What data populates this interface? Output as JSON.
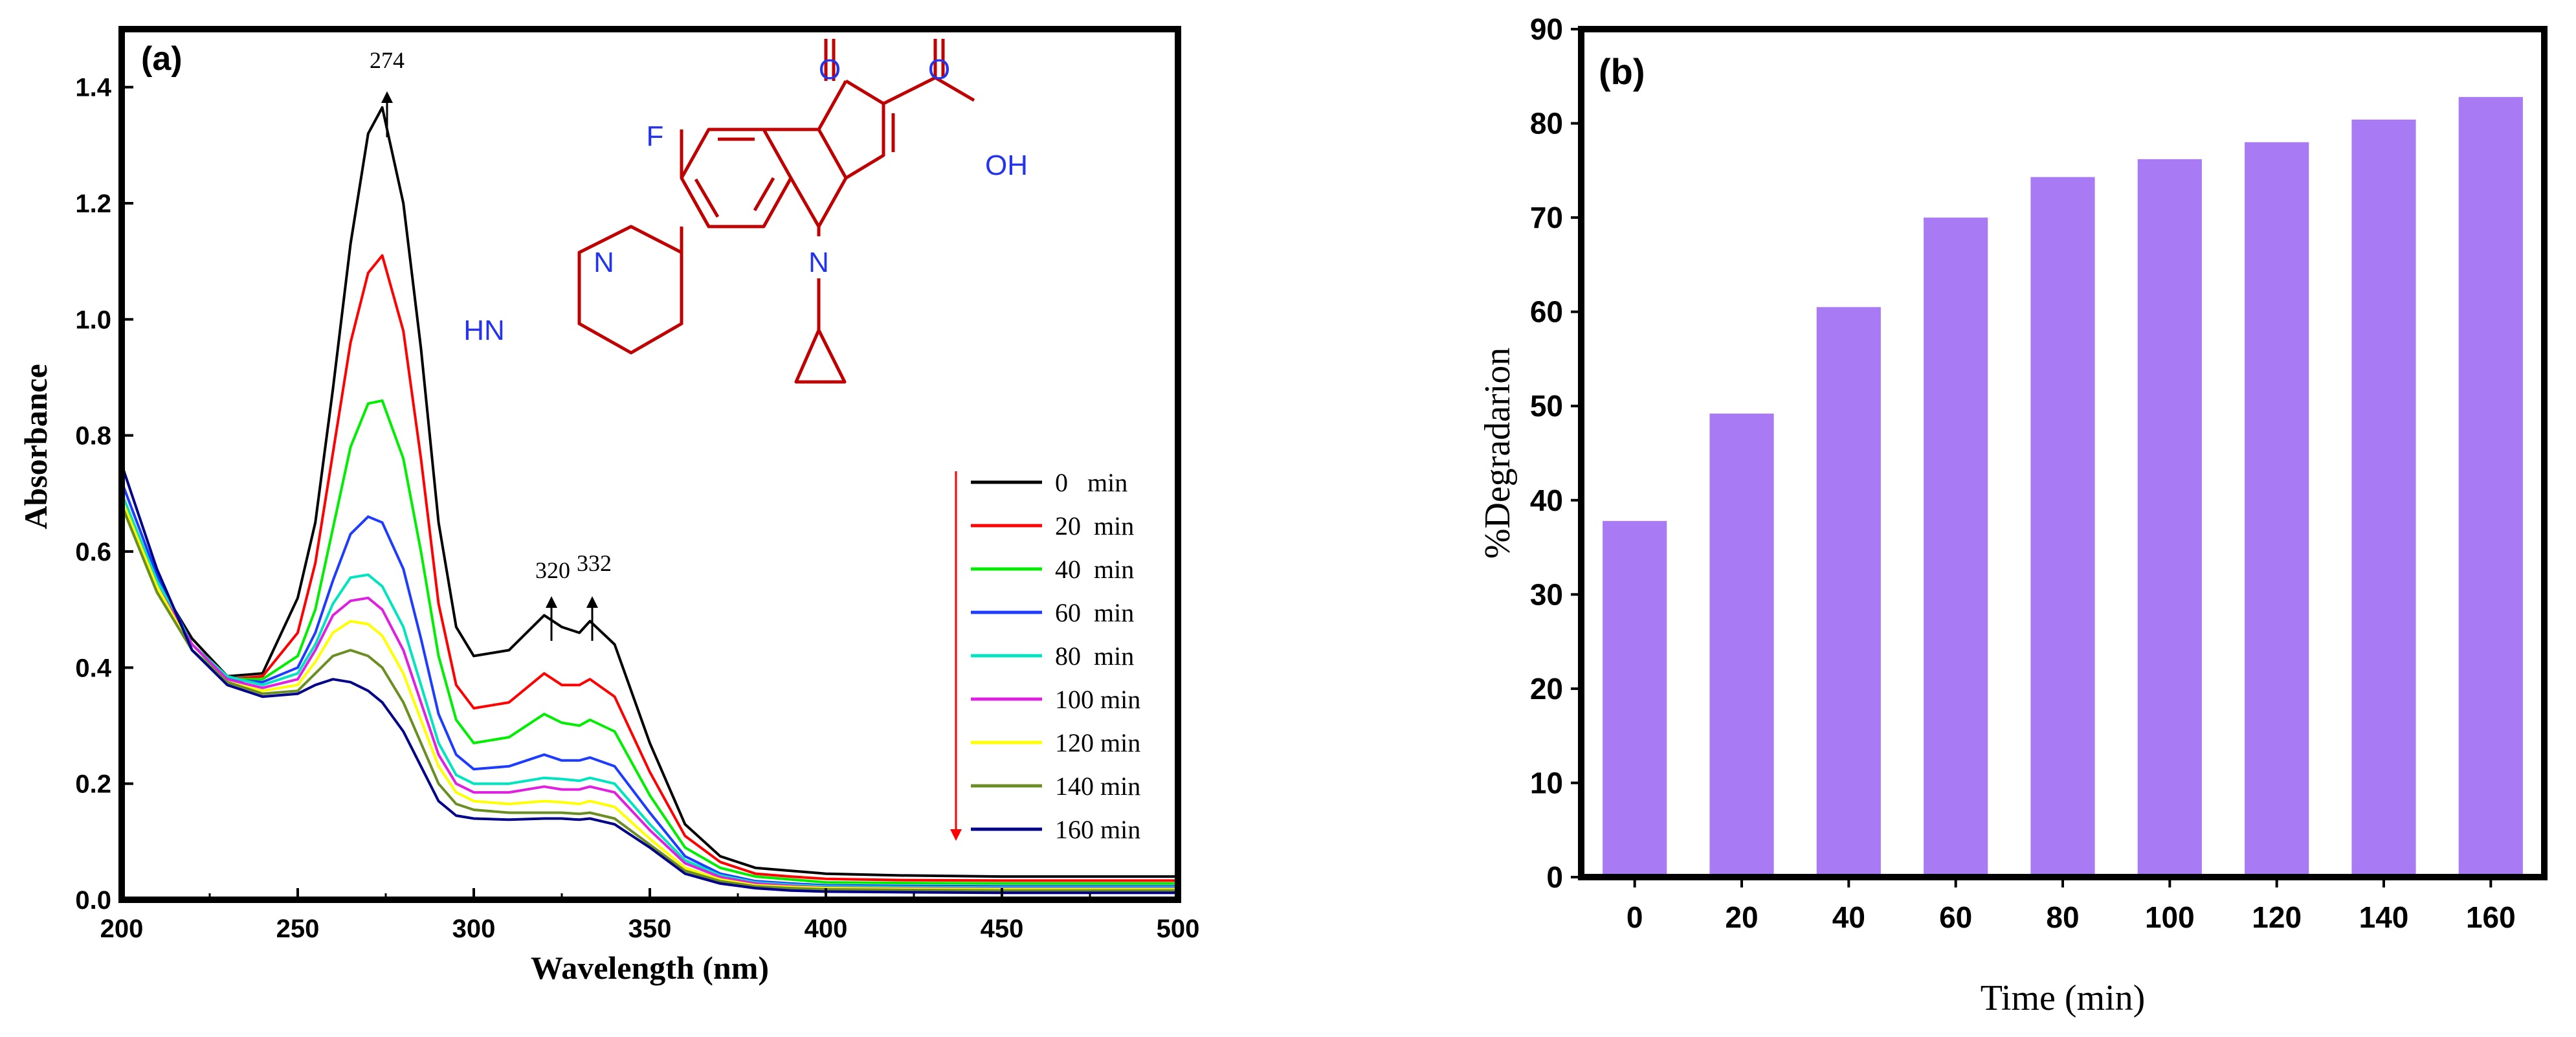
{
  "chart_data": [
    {
      "panel": "(a)",
      "type": "line",
      "xlabel": "Wavelength (nm)",
      "ylabel": "Absorbance",
      "xlim": [
        200,
        500
      ],
      "ylim": [
        0,
        1.5
      ],
      "xticks": [
        200,
        250,
        300,
        350,
        400,
        450,
        500
      ],
      "yticks": [
        0.0,
        0.2,
        0.4,
        0.6,
        0.8,
        1.0,
        1.2,
        1.4
      ],
      "ytick_labels": [
        "0.0",
        "0.2",
        "0.4",
        "0.6",
        "0.8",
        "1.0",
        "1.2",
        "1.4"
      ],
      "grid": false,
      "legend_position": "right",
      "peaks": [
        {
          "label": "274",
          "x": 274,
          "y": 1.365
        },
        {
          "label": "320",
          "x": 322,
          "y": 0.49
        },
        {
          "label": "332",
          "x": 333,
          "y": 0.48
        }
      ],
      "x": [
        200,
        210,
        220,
        230,
        240,
        250,
        255,
        260,
        265,
        270,
        274,
        280,
        285,
        290,
        295,
        300,
        310,
        320,
        325,
        330,
        333,
        340,
        350,
        360,
        370,
        380,
        390,
        400,
        420,
        450,
        480,
        500
      ],
      "series": [
        {
          "name": "0   min",
          "color": "#000000",
          "values": [
            0.7,
            0.55,
            0.45,
            0.385,
            0.39,
            0.52,
            0.65,
            0.88,
            1.13,
            1.32,
            1.365,
            1.2,
            0.95,
            0.65,
            0.47,
            0.42,
            0.43,
            0.49,
            0.47,
            0.46,
            0.48,
            0.44,
            0.27,
            0.13,
            0.075,
            0.055,
            0.05,
            0.045,
            0.042,
            0.04,
            0.04,
            0.04
          ]
        },
        {
          "name": "20  min",
          "color": "#ff0000",
          "values": [
            0.69,
            0.54,
            0.44,
            0.38,
            0.385,
            0.46,
            0.58,
            0.77,
            0.96,
            1.08,
            1.11,
            0.98,
            0.76,
            0.51,
            0.37,
            0.33,
            0.34,
            0.39,
            0.37,
            0.37,
            0.38,
            0.35,
            0.22,
            0.11,
            0.065,
            0.045,
            0.04,
            0.036,
            0.034,
            0.033,
            0.033,
            0.033
          ]
        },
        {
          "name": "40  min",
          "color": "#00ee00",
          "values": [
            0.68,
            0.53,
            0.43,
            0.38,
            0.38,
            0.42,
            0.5,
            0.64,
            0.78,
            0.855,
            0.86,
            0.76,
            0.6,
            0.42,
            0.31,
            0.27,
            0.28,
            0.32,
            0.305,
            0.3,
            0.31,
            0.29,
            0.18,
            0.09,
            0.055,
            0.04,
            0.035,
            0.03,
            0.029,
            0.028,
            0.028,
            0.028
          ]
        },
        {
          "name": "60  min",
          "color": "#1e3cff",
          "values": [
            0.72,
            0.56,
            0.44,
            0.38,
            0.375,
            0.4,
            0.46,
            0.55,
            0.63,
            0.66,
            0.65,
            0.57,
            0.45,
            0.32,
            0.25,
            0.225,
            0.23,
            0.25,
            0.24,
            0.24,
            0.245,
            0.23,
            0.15,
            0.075,
            0.045,
            0.032,
            0.028,
            0.025,
            0.024,
            0.023,
            0.023,
            0.023
          ]
        },
        {
          "name": "80  min",
          "color": "#00e5c0",
          "values": [
            0.7,
            0.55,
            0.44,
            0.385,
            0.37,
            0.39,
            0.44,
            0.51,
            0.555,
            0.56,
            0.54,
            0.47,
            0.37,
            0.27,
            0.215,
            0.2,
            0.2,
            0.21,
            0.208,
            0.205,
            0.21,
            0.2,
            0.13,
            0.068,
            0.042,
            0.03,
            0.026,
            0.023,
            0.022,
            0.021,
            0.021,
            0.021
          ]
        },
        {
          "name": "100 min",
          "color": "#e020e0",
          "values": [
            0.69,
            0.54,
            0.44,
            0.38,
            0.365,
            0.38,
            0.43,
            0.49,
            0.515,
            0.52,
            0.5,
            0.43,
            0.34,
            0.25,
            0.2,
            0.185,
            0.185,
            0.195,
            0.19,
            0.19,
            0.195,
            0.185,
            0.12,
            0.063,
            0.039,
            0.028,
            0.024,
            0.021,
            0.02,
            0.019,
            0.019,
            0.019
          ]
        },
        {
          "name": "120 min",
          "color": "#ffff00",
          "values": [
            0.69,
            0.54,
            0.43,
            0.375,
            0.36,
            0.37,
            0.41,
            0.46,
            0.48,
            0.475,
            0.455,
            0.39,
            0.31,
            0.23,
            0.185,
            0.17,
            0.165,
            0.17,
            0.168,
            0.165,
            0.17,
            0.16,
            0.105,
            0.055,
            0.035,
            0.025,
            0.022,
            0.02,
            0.019,
            0.018,
            0.018,
            0.018
          ]
        },
        {
          "name": "140 min",
          "color": "#6b8e23",
          "values": [
            0.68,
            0.53,
            0.43,
            0.375,
            0.355,
            0.36,
            0.39,
            0.42,
            0.43,
            0.42,
            0.4,
            0.34,
            0.27,
            0.2,
            0.165,
            0.155,
            0.15,
            0.15,
            0.15,
            0.148,
            0.15,
            0.14,
            0.095,
            0.05,
            0.032,
            0.023,
            0.02,
            0.018,
            0.017,
            0.016,
            0.016,
            0.016
          ]
        },
        {
          "name": "160 min",
          "color": "#00008b",
          "values": [
            0.75,
            0.57,
            0.43,
            0.37,
            0.35,
            0.355,
            0.37,
            0.38,
            0.375,
            0.36,
            0.34,
            0.29,
            0.23,
            0.17,
            0.145,
            0.14,
            0.138,
            0.14,
            0.14,
            0.138,
            0.14,
            0.13,
            0.09,
            0.045,
            0.028,
            0.02,
            0.016,
            0.014,
            0.013,
            0.012,
            0.012,
            0.012
          ]
        }
      ],
      "structure_labels": {
        "oxygen": "O",
        "fluorine": "F",
        "nitrogen": "N",
        "hydroxyl": "OH",
        "amine": "HN"
      }
    },
    {
      "panel": "(b)",
      "type": "bar",
      "xlabel": "Time (min)",
      "ylabel": "%Degradarion",
      "categories": [
        "0",
        "20",
        "40",
        "60",
        "80",
        "100",
        "120",
        "140",
        "160"
      ],
      "values": [
        37.8,
        49.2,
        60.5,
        70.0,
        74.3,
        76.2,
        78.0,
        80.4,
        82.8
      ],
      "ylim": [
        0,
        90
      ],
      "yticks": [
        0,
        10,
        20,
        30,
        40,
        50,
        60,
        70,
        80,
        90
      ],
      "bar_color": "#a87bf5",
      "grid": false
    }
  ]
}
